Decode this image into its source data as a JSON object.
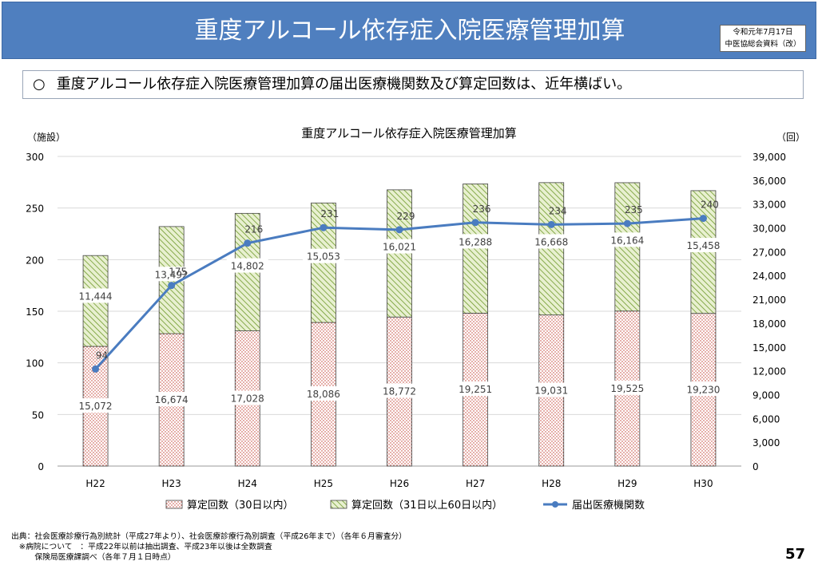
{
  "header": {
    "title": "重度アルコール依存症入院医療管理加算",
    "note_line1": "令和元年7月17日",
    "note_line2": "中医協総会資料（改）"
  },
  "summary": {
    "bullet": "○",
    "text": "重度アルコール依存症入院医療管理加算の届出医療機関数及び算定回数は、近年横ばい。"
  },
  "chart_data": {
    "type": "bar",
    "title": "重度アルコール依存症入院医療管理加算",
    "left_unit": "（施設）",
    "right_unit": "（回）",
    "categories": [
      "H22",
      "H23",
      "H24",
      "H25",
      "H26",
      "H27",
      "H28",
      "H29",
      "H30"
    ],
    "series": [
      {
        "name": "算定回数（30日以内）",
        "type": "bar",
        "axis": "right",
        "color": "#d9534f",
        "values": [
          15072,
          16674,
          17028,
          18086,
          18772,
          19251,
          19031,
          19525,
          19230
        ]
      },
      {
        "name": "算定回数（31日以上60日以内）",
        "type": "bar",
        "axis": "right",
        "color": "#8fbc3a",
        "values": [
          11444,
          13492,
          14802,
          15053,
          16021,
          16288,
          16668,
          16164,
          15458
        ]
      },
      {
        "name": "届出医療機関数",
        "type": "line",
        "axis": "left",
        "color": "#4a7cc0",
        "values": [
          94,
          175,
          216,
          231,
          229,
          236,
          234,
          235,
          240
        ]
      }
    ],
    "yleft": {
      "min": 0,
      "max": 300,
      "ticks": [
        "0",
        "50",
        "100",
        "150",
        "200",
        "250",
        "300"
      ]
    },
    "yright": {
      "min": 0,
      "max": 39000,
      "ticks": [
        "0",
        "3,000",
        "6,000",
        "9,000",
        "12,000",
        "15,000",
        "18,000",
        "21,000",
        "24,000",
        "27,000",
        "30,000",
        "33,000",
        "36,000",
        "39,000"
      ]
    },
    "legend_position": "bottom",
    "grid": true
  },
  "footer": {
    "line1": "出典：社会医療診療行為別統計（平成27年より）、社会医療診療行為別調査（平成26年まで）（各年６月審査分）",
    "line2": "　※病院について　：平成22年以前は抽出調査、平成23年以後は全数調査",
    "line3": "　　　保険局医療課調べ（各年７月１日時点）",
    "page": "57"
  }
}
